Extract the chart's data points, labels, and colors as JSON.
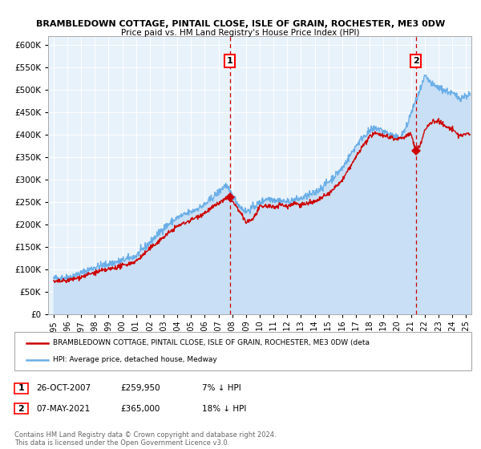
{
  "title": "BRAMBLEDOWN COTTAGE, PINTAIL CLOSE, ISLE OF GRAIN, ROCHESTER, ME3 0DW",
  "subtitle": "Price paid vs. HM Land Registry's House Price Index (HPI)",
  "ylim": [
    0,
    620000
  ],
  "yticks": [
    0,
    50000,
    100000,
    150000,
    200000,
    250000,
    300000,
    350000,
    400000,
    450000,
    500000,
    550000,
    600000
  ],
  "xlim_start": 1994.6,
  "xlim_end": 2025.4,
  "sale1_x": 2007.82,
  "sale1_y": 259950,
  "sale1_label": "1",
  "sale1_date": "26-OCT-2007",
  "sale1_price": "£259,950",
  "sale1_hpi": "7% ↓ HPI",
  "sale2_x": 2021.35,
  "sale2_y": 365000,
  "sale2_label": "2",
  "sale2_date": "07-MAY-2021",
  "sale2_price": "£365,000",
  "sale2_hpi": "18% ↓ HPI",
  "hpi_color": "#6aaee8",
  "hpi_fill_color": "#c8dff5",
  "sale_color": "#cc0000",
  "background_color": "#e8f2fb",
  "legend_label_sale": "BRAMBLEDOWN COTTAGE, PINTAIL CLOSE, ISLE OF GRAIN, ROCHESTER, ME3 0DW (deta",
  "legend_label_hpi": "HPI: Average price, detached house, Medway",
  "footer1": "Contains HM Land Registry data © Crown copyright and database right 2024.",
  "footer2": "This data is licensed under the Open Government Licence v3.0."
}
